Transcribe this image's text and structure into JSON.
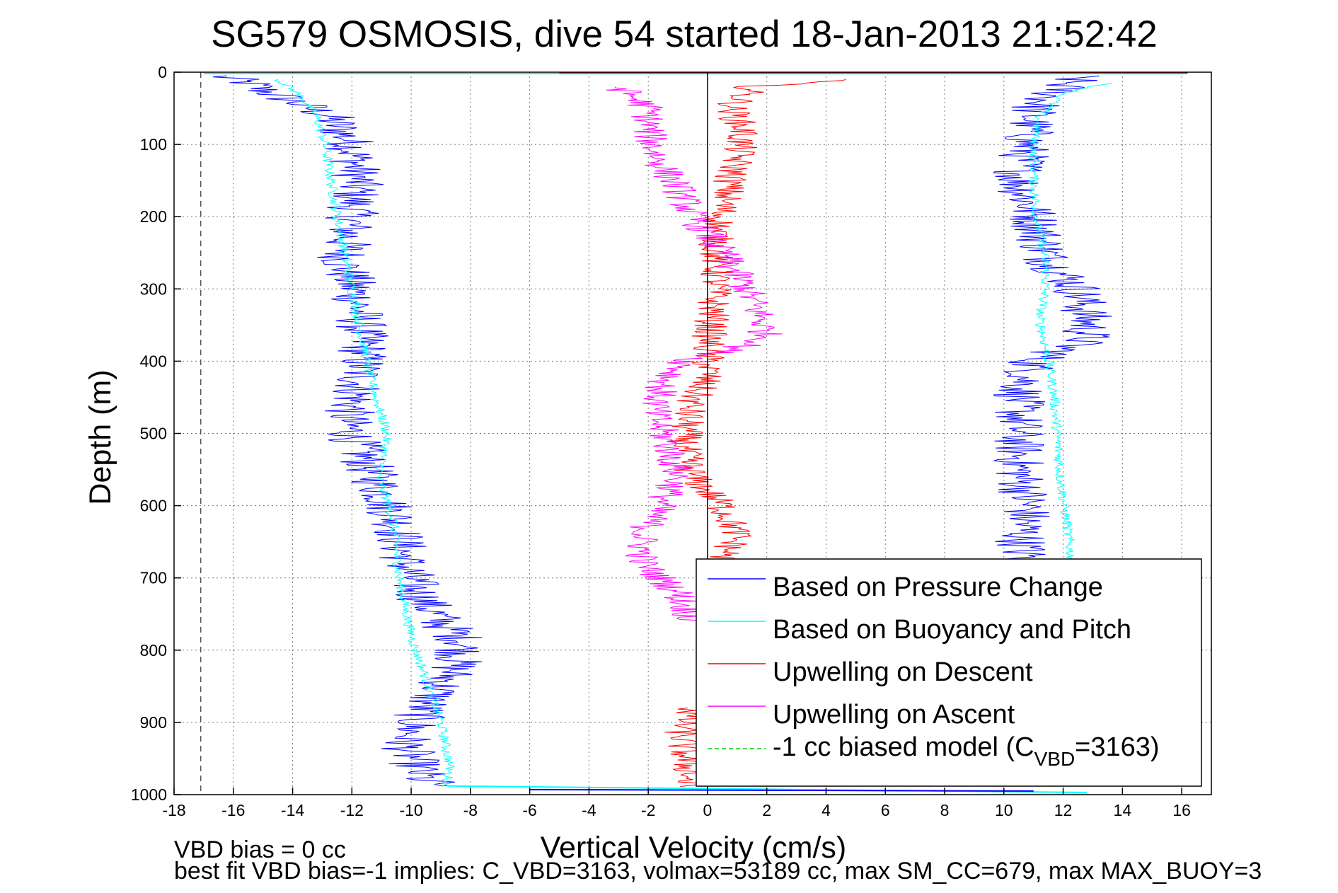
{
  "chart_data": {
    "type": "line",
    "title": "SG579 OSMOSIS, dive 54 started 18-Jan-2013 21:52:42",
    "xlabel": "Vertical Velocity (cm/s)",
    "ylabel": "Depth (m)",
    "xlim": [
      -18,
      17
    ],
    "ylim": [
      1000,
      0
    ],
    "y_reversed": true,
    "grid": true,
    "legend_position": "bottom-right",
    "x_ticks": [
      -18,
      -16,
      -14,
      -12,
      -10,
      -8,
      -6,
      -4,
      -2,
      0,
      2,
      4,
      6,
      8,
      10,
      12,
      14,
      16
    ],
    "y_ticks": [
      0,
      100,
      200,
      300,
      400,
      500,
      600,
      700,
      800,
      900,
      1000
    ],
    "x_tick_labels": [
      "-18",
      "-16",
      "-14",
      "-12",
      "-10",
      "-8",
      "-6",
      "-4",
      "-2",
      "0",
      "2",
      "4",
      "6",
      "8",
      "10",
      "12",
      "14",
      "16"
    ],
    "y_tick_labels": [
      "0",
      "100",
      "200",
      "300",
      "400",
      "500",
      "600",
      "700",
      "800",
      "900",
      "1000"
    ],
    "reference_lines": [
      {
        "orientation": "vertical",
        "x": -17.1,
        "style": "dashed",
        "color": "#555555"
      },
      {
        "orientation": "vertical",
        "x": 0,
        "style": "solid",
        "color": "#000000"
      }
    ],
    "legend": [
      {
        "label": "Based on Pressure Change",
        "color": "#0000ff",
        "style": "solid"
      },
      {
        "label": "Based on Buoyancy and Pitch",
        "color": "#00ffff",
        "style": "solid"
      },
      {
        "label": "Upwelling on Descent",
        "color": "#ff0000",
        "style": "solid"
      },
      {
        "label": "Upwelling on Ascent",
        "color": "#ff00ff",
        "style": "solid"
      },
      {
        "label_prefix": "-1 cc biased model (C",
        "label_sub": "VBD",
        "label_suffix": "=3163)",
        "color": "#00cc00",
        "style": "dashed"
      }
    ],
    "series": [
      {
        "id": "pressure-descent",
        "color": "#0000ff",
        "noise": 0.9,
        "points": [
          [
            -16.5,
            5
          ],
          [
            -15.5,
            15
          ],
          [
            -15,
            25
          ],
          [
            -14,
            40
          ],
          [
            -12.8,
            60
          ],
          [
            -12,
            100
          ],
          [
            -11.8,
            150
          ],
          [
            -12,
            200
          ],
          [
            -12.3,
            260
          ],
          [
            -11.8,
            320
          ],
          [
            -11.6,
            380
          ],
          [
            -11.8,
            440
          ],
          [
            -12.2,
            480
          ],
          [
            -11.8,
            520
          ],
          [
            -11,
            580
          ],
          [
            -10.5,
            620
          ],
          [
            -10.2,
            680
          ],
          [
            -9.8,
            720
          ],
          [
            -9,
            760
          ],
          [
            -8.2,
            790
          ],
          [
            -8.6,
            830
          ],
          [
            -9.6,
            880
          ],
          [
            -10.2,
            930
          ],
          [
            -9.6,
            980
          ],
          [
            -8.6,
            990
          ]
        ]
      },
      {
        "id": "pressure-ascent",
        "color": "#0000ff",
        "noise": 0.9,
        "points": [
          [
            12.5,
            5
          ],
          [
            12,
            20
          ],
          [
            11,
            50
          ],
          [
            10.8,
            90
          ],
          [
            10.5,
            150
          ],
          [
            11,
            200
          ],
          [
            11.5,
            260
          ],
          [
            12.5,
            300
          ],
          [
            12.8,
            340
          ],
          [
            12.8,
            370
          ],
          [
            11,
            400
          ],
          [
            10.5,
            450
          ],
          [
            10.5,
            500
          ],
          [
            10.5,
            550
          ],
          [
            10.8,
            600
          ],
          [
            10.6,
            650
          ],
          [
            10.8,
            700
          ]
        ]
      },
      {
        "id": "model-descent",
        "color": "#00ffff",
        "noise": 0.18,
        "points": [
          [
            -14.5,
            10
          ],
          [
            -13.8,
            30
          ],
          [
            -13.2,
            60
          ],
          [
            -12.9,
            100
          ],
          [
            -12.7,
            150
          ],
          [
            -12.5,
            200
          ],
          [
            -12,
            300
          ],
          [
            -11.5,
            400
          ],
          [
            -11.2,
            450
          ],
          [
            -10.8,
            500
          ],
          [
            -11.1,
            560
          ],
          [
            -10.6,
            620
          ],
          [
            -10.4,
            700
          ],
          [
            -10,
            780
          ],
          [
            -9.5,
            840
          ],
          [
            -9,
            900
          ],
          [
            -8.7,
            960
          ],
          [
            -8.8,
            990
          ]
        ]
      },
      {
        "id": "model-ascent",
        "color": "#00ffff",
        "noise": 0.18,
        "points": [
          [
            13.5,
            15
          ],
          [
            12,
            30
          ],
          [
            11.2,
            60
          ],
          [
            11,
            100
          ],
          [
            11,
            150
          ],
          [
            11.1,
            200
          ],
          [
            11.4,
            260
          ],
          [
            11.4,
            300
          ],
          [
            11.2,
            340
          ],
          [
            11.5,
            400
          ],
          [
            11.7,
            450
          ],
          [
            11.8,
            500
          ],
          [
            11.9,
            560
          ],
          [
            12.1,
            620
          ],
          [
            12.3,
            680
          ],
          [
            12.5,
            740
          ]
        ]
      },
      {
        "id": "upwell-descent",
        "color": "#ff0000",
        "noise": 0.6,
        "points": [
          [
            4.5,
            10
          ],
          [
            1.5,
            20
          ],
          [
            0.8,
            50
          ],
          [
            1.2,
            80
          ],
          [
            1,
            120
          ],
          [
            0.7,
            160
          ],
          [
            0.3,
            220
          ],
          [
            0.3,
            280
          ],
          [
            0.2,
            330
          ],
          [
            0,
            380
          ],
          [
            0,
            420
          ],
          [
            -0.6,
            460
          ],
          [
            -0.8,
            520
          ],
          [
            -0.5,
            560
          ],
          [
            0.5,
            600
          ],
          [
            1,
            640
          ],
          [
            0.6,
            670
          ],
          [
            0,
            690
          ]
        ]
      },
      {
        "id": "upwell-descent-deep",
        "color": "#ff0000",
        "noise": 0.6,
        "points": [
          [
            -0.5,
            880
          ],
          [
            -0.9,
            910
          ],
          [
            -0.8,
            940
          ],
          [
            -0.6,
            970
          ],
          [
            -0.8,
            990
          ]
        ]
      },
      {
        "id": "upwell-ascent",
        "color": "#ff00ff",
        "noise": 0.6,
        "points": [
          [
            -3,
            20
          ],
          [
            -2,
            50
          ],
          [
            -2,
            80
          ],
          [
            -1.7,
            120
          ],
          [
            -1,
            160
          ],
          [
            -0.5,
            200
          ],
          [
            0.5,
            250
          ],
          [
            1.3,
            300
          ],
          [
            1.8,
            340
          ],
          [
            2,
            370
          ],
          [
            -0.7,
            400
          ],
          [
            -1.5,
            430
          ],
          [
            -1.8,
            470
          ],
          [
            -1.3,
            520
          ],
          [
            -1,
            560
          ],
          [
            -1.6,
            600
          ],
          [
            -2.2,
            640
          ],
          [
            -2.2,
            680
          ],
          [
            -1,
            720
          ],
          [
            -0.5,
            760
          ]
        ]
      }
    ]
  },
  "footer": {
    "line1": "VBD bias = 0 cc",
    "line2": "best fit VBD bias=-1 implies: C_VBD=3163, volmax=53189 cc, max SM_CC=679, max MAX_BUOY=3"
  }
}
